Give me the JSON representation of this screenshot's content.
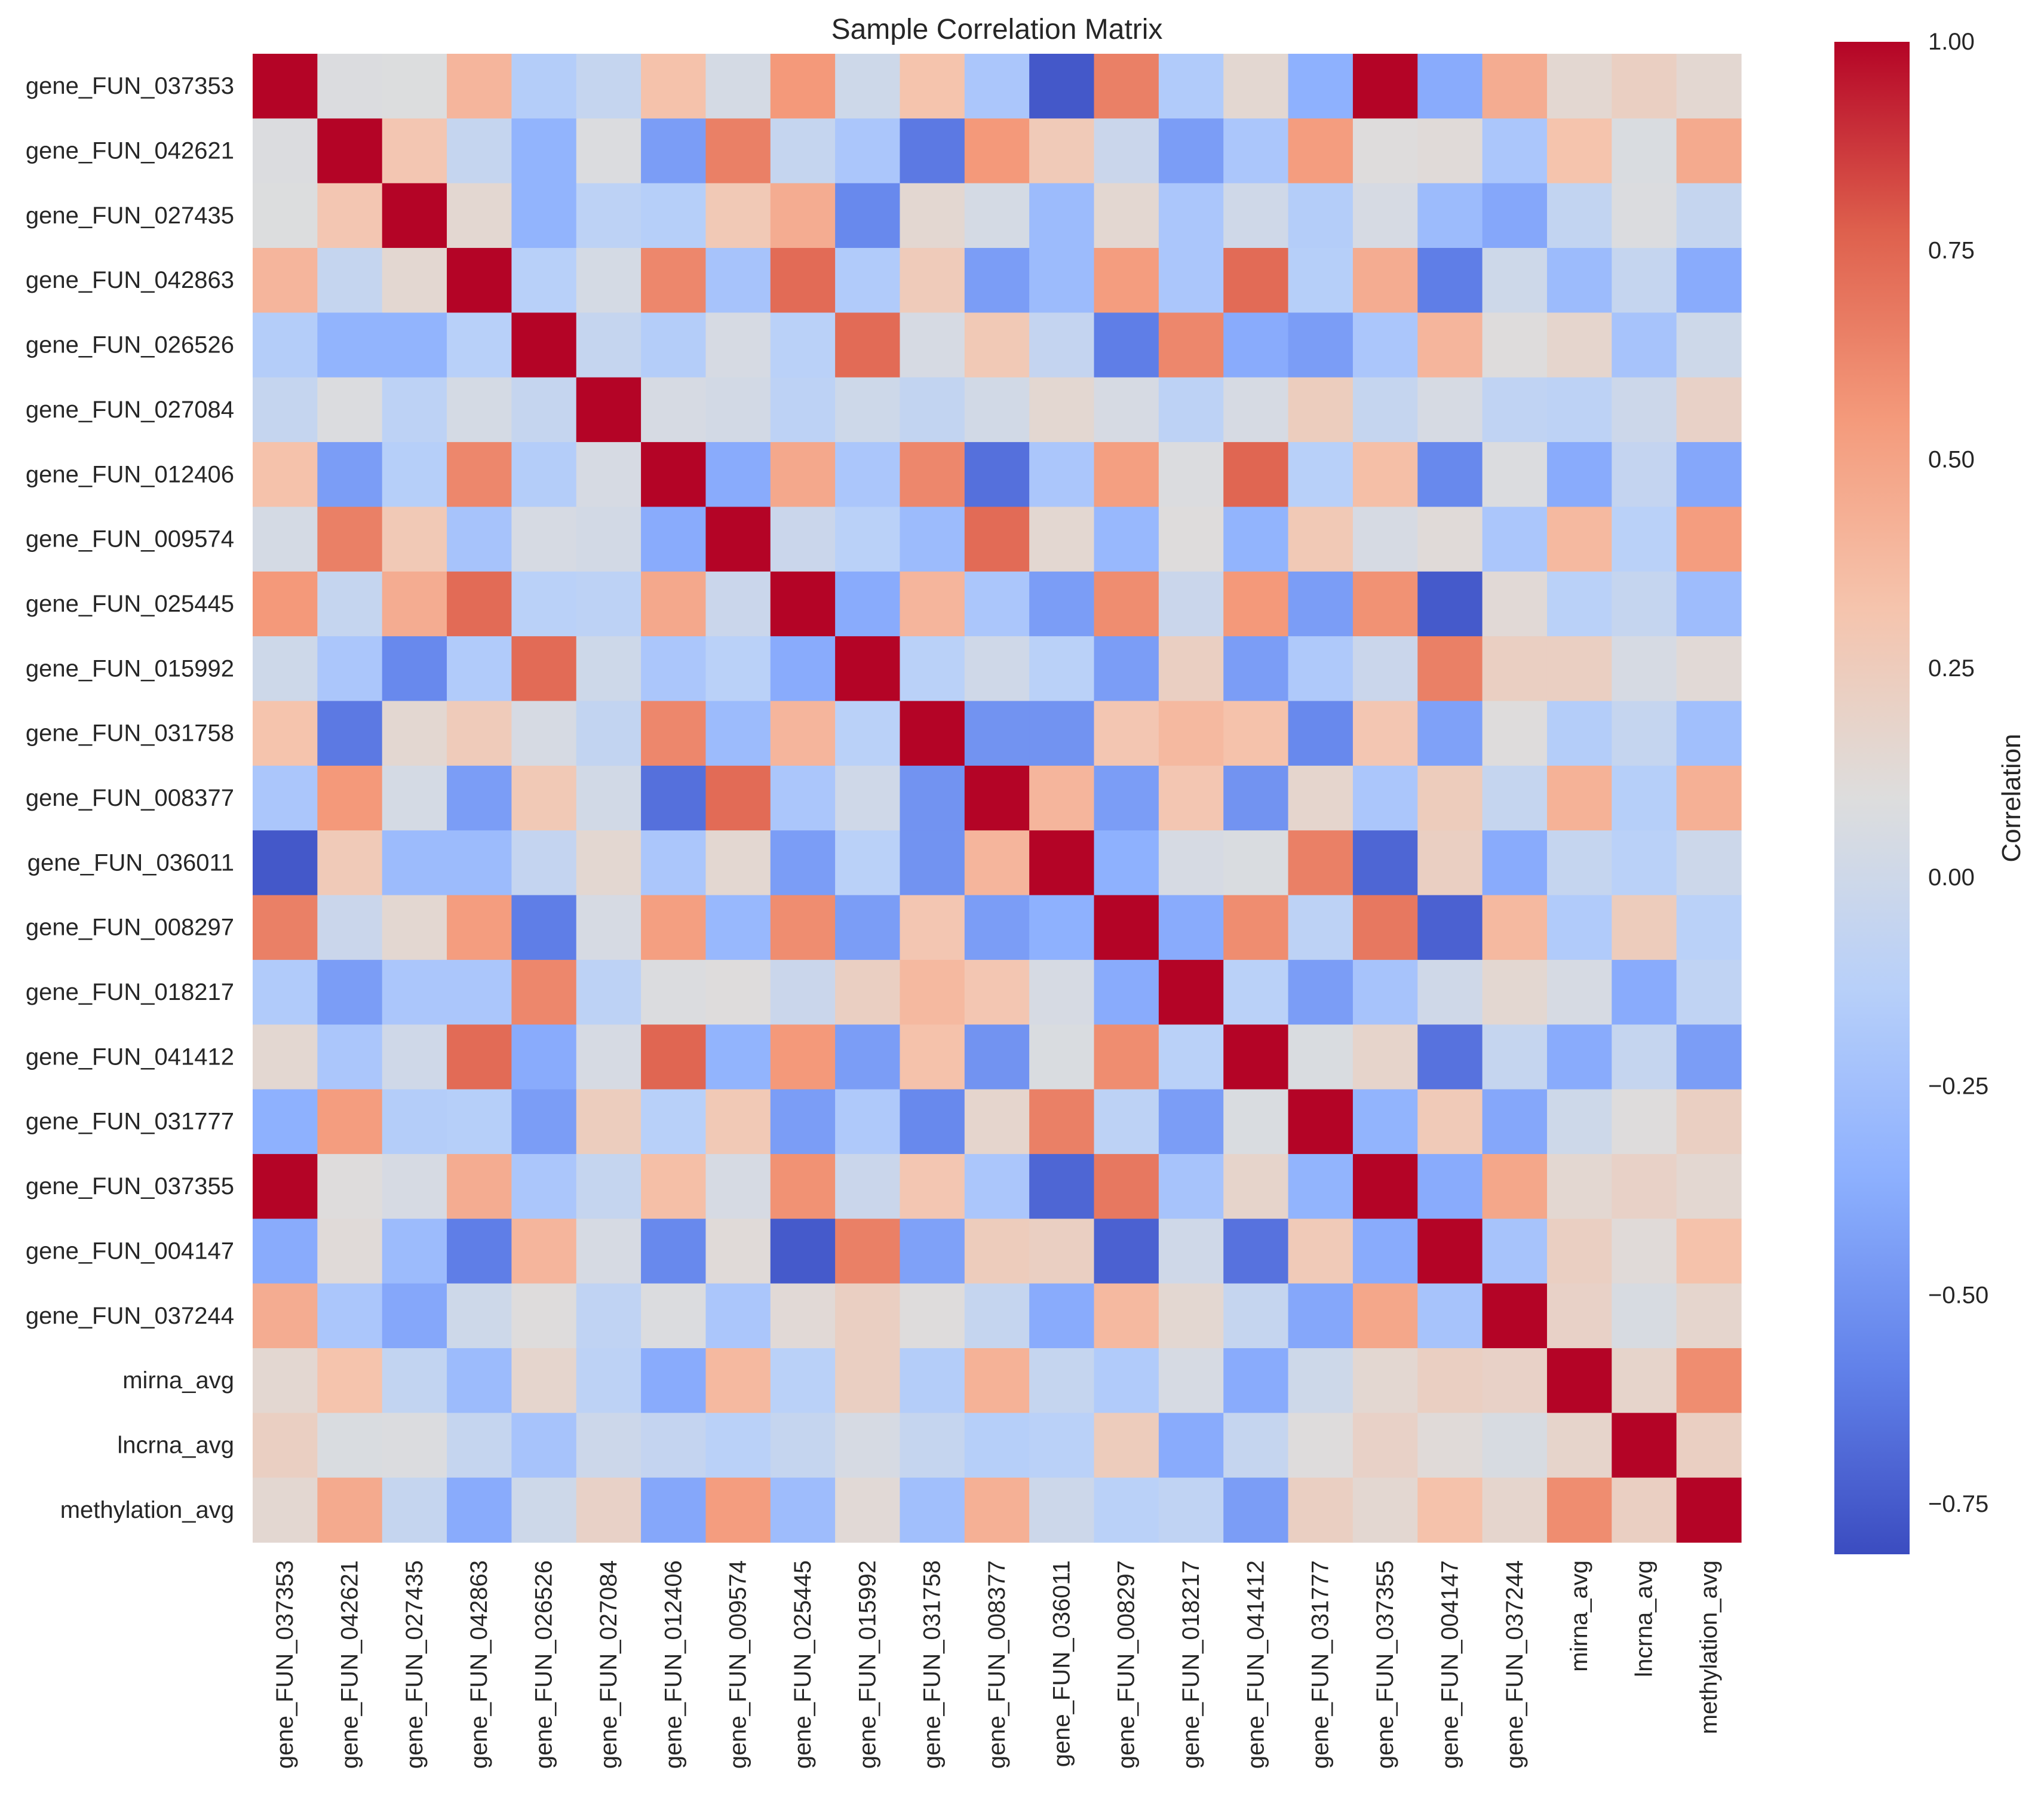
{
  "chart_data": {
    "type": "heatmap",
    "title": "Sample Correlation Matrix",
    "xlabel": "",
    "ylabel": "",
    "colormap": "coolwarm",
    "colorbar": {
      "label": "Correlation",
      "vmin": -0.81,
      "vmax": 1.0,
      "ticks": [
        1.0,
        0.75,
        0.5,
        0.25,
        0.0,
        -0.25,
        -0.5,
        -0.75
      ],
      "tick_labels": [
        "1.00",
        "0.75",
        "0.50",
        "0.25",
        "0.00",
        "−0.25",
        "−0.50",
        "−0.75"
      ],
      "placement": "right"
    },
    "grid": false,
    "labels": [
      "gene_FUN_037353",
      "gene_FUN_042621",
      "gene_FUN_027435",
      "gene_FUN_042863",
      "gene_FUN_026526",
      "gene_FUN_027084",
      "gene_FUN_012406",
      "gene_FUN_009574",
      "gene_FUN_025445",
      "gene_FUN_015992",
      "gene_FUN_031758",
      "gene_FUN_008377",
      "gene_FUN_036011",
      "gene_FUN_008297",
      "gene_FUN_018217",
      "gene_FUN_041412",
      "gene_FUN_031777",
      "gene_FUN_037355",
      "gene_FUN_004147",
      "gene_FUN_037244",
      "mirna_avg",
      "lncrna_avg",
      "methylation_avg"
    ],
    "matrix": [
      [
        1.0,
        0.08,
        0.09,
        0.4,
        -0.15,
        -0.05,
        0.33,
        0.04,
        0.55,
        0.0,
        0.32,
        -0.2,
        -0.76,
        0.65,
        -0.17,
        0.15,
        -0.35,
        1.0,
        -0.38,
        0.45,
        0.15,
        0.22,
        0.15
      ],
      [
        0.08,
        1.0,
        0.3,
        -0.05,
        -0.33,
        0.08,
        -0.45,
        0.65,
        -0.05,
        -0.2,
        -0.62,
        0.55,
        0.27,
        -0.02,
        -0.45,
        -0.2,
        0.53,
        0.1,
        0.12,
        -0.2,
        0.32,
        0.07,
        0.46
      ],
      [
        0.09,
        0.3,
        1.0,
        0.15,
        -0.33,
        -0.1,
        -0.14,
        0.28,
        0.45,
        -0.55,
        0.15,
        0.04,
        -0.28,
        0.15,
        -0.2,
        0.01,
        -0.15,
        0.05,
        -0.28,
        -0.4,
        -0.07,
        0.08,
        -0.05
      ],
      [
        0.4,
        -0.05,
        0.15,
        1.0,
        -0.13,
        0.04,
        0.62,
        -0.22,
        0.73,
        -0.17,
        0.26,
        -0.45,
        -0.28,
        0.53,
        -0.2,
        0.73,
        -0.14,
        0.45,
        -0.6,
        0.0,
        -0.28,
        -0.05,
        -0.38
      ],
      [
        -0.15,
        -0.33,
        -0.33,
        -0.13,
        1.0,
        -0.05,
        -0.15,
        0.05,
        -0.12,
        0.73,
        0.05,
        0.28,
        -0.06,
        -0.6,
        0.62,
        -0.38,
        -0.45,
        -0.2,
        0.4,
        0.1,
        0.17,
        -0.22,
        0.0
      ],
      [
        -0.05,
        0.08,
        -0.1,
        0.04,
        -0.05,
        1.0,
        0.05,
        0.03,
        -0.1,
        0.0,
        -0.07,
        0.02,
        0.15,
        0.05,
        -0.1,
        0.05,
        0.24,
        -0.05,
        0.05,
        -0.08,
        -0.1,
        -0.01,
        0.2
      ],
      [
        0.33,
        -0.45,
        -0.14,
        0.62,
        -0.15,
        0.05,
        1.0,
        -0.38,
        0.47,
        -0.2,
        0.62,
        -0.66,
        -0.2,
        0.52,
        0.08,
        0.75,
        -0.13,
        0.35,
        -0.55,
        0.08,
        -0.38,
        -0.06,
        -0.4
      ],
      [
        0.04,
        0.65,
        0.28,
        -0.22,
        0.05,
        0.03,
        -0.38,
        1.0,
        -0.02,
        -0.12,
        -0.28,
        0.73,
        0.15,
        -0.3,
        0.1,
        -0.33,
        0.28,
        0.05,
        0.12,
        -0.2,
        0.38,
        -0.12,
        0.53
      ],
      [
        0.55,
        -0.05,
        0.45,
        0.73,
        -0.12,
        -0.1,
        0.47,
        -0.02,
        1.0,
        -0.38,
        0.4,
        -0.2,
        -0.45,
        0.6,
        -0.02,
        0.55,
        -0.45,
        0.58,
        -0.75,
        0.13,
        -0.12,
        -0.05,
        -0.27
      ],
      [
        0.0,
        -0.2,
        -0.55,
        -0.17,
        0.73,
        0.0,
        -0.2,
        -0.12,
        -0.38,
        1.0,
        -0.12,
        0.01,
        -0.12,
        -0.45,
        0.22,
        -0.45,
        -0.18,
        -0.02,
        0.65,
        0.22,
        0.22,
        0.05,
        0.13
      ],
      [
        0.32,
        -0.62,
        0.15,
        0.26,
        0.05,
        -0.07,
        0.62,
        -0.28,
        0.4,
        -0.12,
        1.0,
        -0.5,
        -0.5,
        0.3,
        0.38,
        0.33,
        -0.55,
        0.3,
        -0.43,
        0.1,
        -0.15,
        -0.05,
        -0.25
      ],
      [
        -0.2,
        0.55,
        0.04,
        -0.45,
        0.28,
        0.02,
        -0.66,
        0.73,
        -0.2,
        0.01,
        -0.5,
        1.0,
        0.4,
        -0.45,
        0.3,
        -0.5,
        0.17,
        -0.2,
        0.25,
        -0.05,
        0.42,
        -0.14,
        0.43
      ],
      [
        -0.76,
        0.27,
        -0.28,
        -0.28,
        -0.06,
        0.15,
        -0.2,
        0.15,
        -0.45,
        -0.12,
        -0.5,
        0.4,
        1.0,
        -0.35,
        0.05,
        0.07,
        0.65,
        -0.7,
        0.22,
        -0.38,
        -0.05,
        -0.12,
        -0.01
      ],
      [
        0.65,
        -0.02,
        0.15,
        0.53,
        -0.6,
        0.05,
        0.52,
        -0.3,
        0.6,
        -0.45,
        0.3,
        -0.45,
        -0.35,
        1.0,
        -0.38,
        0.6,
        -0.1,
        0.68,
        -0.72,
        0.38,
        -0.17,
        0.25,
        -0.12
      ],
      [
        -0.17,
        -0.45,
        -0.2,
        -0.2,
        0.62,
        -0.1,
        0.08,
        0.1,
        -0.02,
        0.22,
        0.38,
        0.3,
        0.05,
        -0.38,
        1.0,
        -0.12,
        -0.45,
        -0.22,
        0.01,
        0.15,
        0.05,
        -0.38,
        -0.08
      ],
      [
        0.15,
        -0.2,
        0.01,
        0.73,
        -0.38,
        0.05,
        0.75,
        -0.33,
        0.55,
        -0.45,
        0.33,
        -0.5,
        0.07,
        0.6,
        -0.12,
        1.0,
        0.07,
        0.18,
        -0.65,
        -0.05,
        -0.38,
        -0.05,
        -0.45
      ],
      [
        -0.35,
        0.53,
        -0.15,
        -0.14,
        -0.45,
        0.24,
        -0.13,
        0.28,
        -0.45,
        -0.18,
        -0.55,
        0.17,
        0.65,
        -0.1,
        -0.45,
        0.07,
        1.0,
        -0.33,
        0.27,
        -0.4,
        0.0,
        0.1,
        0.22
      ],
      [
        1.0,
        0.1,
        0.05,
        0.45,
        -0.2,
        -0.05,
        0.35,
        0.05,
        0.58,
        -0.02,
        0.3,
        -0.2,
        -0.7,
        0.68,
        -0.22,
        0.18,
        -0.33,
        1.0,
        -0.38,
        0.48,
        0.15,
        0.2,
        0.15
      ],
      [
        -0.38,
        0.12,
        -0.28,
        -0.6,
        0.4,
        0.05,
        -0.55,
        0.12,
        -0.75,
        0.65,
        -0.43,
        0.25,
        0.22,
        -0.72,
        0.01,
        -0.65,
        0.27,
        -0.38,
        1.0,
        -0.22,
        0.22,
        0.12,
        0.33
      ],
      [
        0.45,
        -0.2,
        -0.4,
        0.0,
        0.1,
        -0.08,
        0.08,
        -0.2,
        0.13,
        0.22,
        0.1,
        -0.05,
        -0.38,
        0.38,
        0.15,
        -0.05,
        -0.4,
        0.48,
        -0.22,
        1.0,
        0.2,
        0.06,
        0.17
      ],
      [
        0.15,
        0.32,
        -0.07,
        -0.28,
        0.17,
        -0.1,
        -0.38,
        0.38,
        -0.12,
        0.22,
        -0.15,
        0.42,
        -0.05,
        -0.17,
        0.05,
        -0.38,
        0.0,
        0.15,
        0.22,
        0.2,
        1.0,
        0.18,
        0.6
      ],
      [
        0.22,
        0.07,
        0.08,
        -0.05,
        -0.22,
        -0.01,
        -0.06,
        -0.12,
        -0.05,
        0.05,
        -0.05,
        -0.14,
        -0.12,
        0.25,
        -0.38,
        -0.05,
        0.1,
        0.2,
        0.12,
        0.06,
        0.18,
        1.0,
        0.22
      ],
      [
        0.15,
        0.46,
        -0.05,
        -0.38,
        0.0,
        0.2,
        -0.4,
        0.53,
        -0.27,
        0.13,
        -0.25,
        0.43,
        -0.01,
        -0.12,
        -0.08,
        -0.45,
        0.22,
        0.15,
        0.33,
        0.17,
        0.6,
        0.22,
        1.0
      ]
    ]
  }
}
